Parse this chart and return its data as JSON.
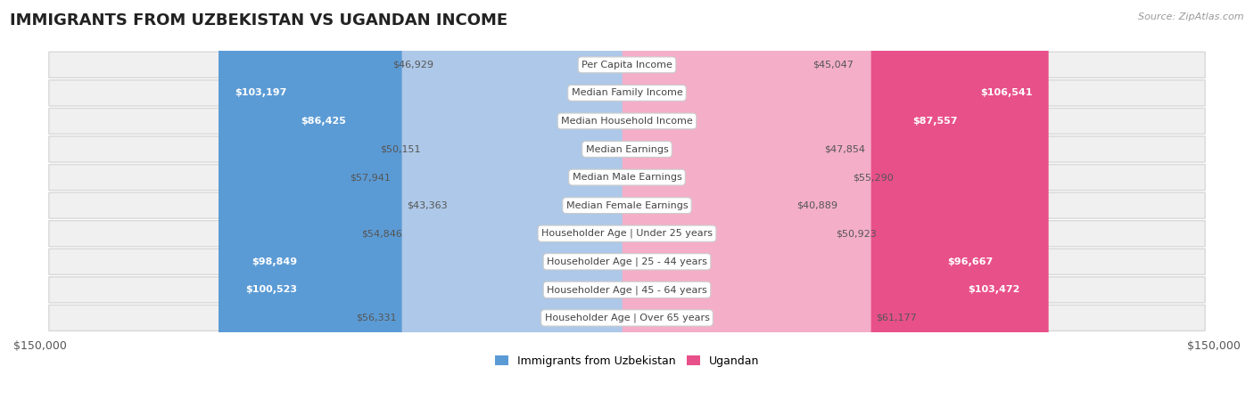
{
  "title": "IMMIGRANTS FROM UZBEKISTAN VS UGANDAN INCOME",
  "source": "Source: ZipAtlas.com",
  "categories": [
    "Per Capita Income",
    "Median Family Income",
    "Median Household Income",
    "Median Earnings",
    "Median Male Earnings",
    "Median Female Earnings",
    "Householder Age | Under 25 years",
    "Householder Age | 25 - 44 years",
    "Householder Age | 45 - 64 years",
    "Householder Age | Over 65 years"
  ],
  "uzbekistan_values": [
    46929,
    103197,
    86425,
    50151,
    57941,
    43363,
    54846,
    98849,
    100523,
    56331
  ],
  "ugandan_values": [
    45047,
    106541,
    87557,
    47854,
    55290,
    40889,
    50923,
    96667,
    103472,
    61177
  ],
  "uzbekistan_color_light": "#adc8e8",
  "uzbekistan_color_dark": "#5b9bd5",
  "ugandan_color_light": "#f4aec8",
  "ugandan_color_dark": "#e8508a",
  "uzbekistan_label": "Immigrants from Uzbekistan",
  "ugandan_label": "Ugandan",
  "max_value": 150000,
  "bg_color": "#ffffff",
  "row_bg_color": "#f0f0f0",
  "row_border_color": "#d8d8d8",
  "label_box_color": "#ffffff",
  "label_threshold": 75000,
  "title_fontsize": 13,
  "source_fontsize": 8,
  "bar_label_fontsize": 8,
  "cat_label_fontsize": 8
}
